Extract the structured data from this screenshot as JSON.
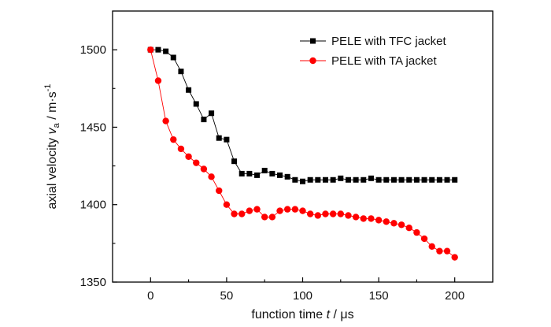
{
  "chart_data": {
    "type": "line",
    "xlabel": {
      "prefix": "function time ",
      "var": "t",
      "suffix": " / μs"
    },
    "ylabel": {
      "prefix": "axial velocity ",
      "var": "v",
      "sub": "a",
      "suffix": " / m·s",
      "sup": "-1"
    },
    "xlim": [
      -25,
      225
    ],
    "ylim": [
      1350,
      1525
    ],
    "x_ticks": [
      "0",
      "50",
      "100",
      "150",
      "200"
    ],
    "y_ticks": [
      "1350",
      "1400",
      "1450",
      "1500"
    ],
    "grid": false,
    "legend_position": "top-right",
    "series": [
      {
        "name": "PELE with TFC jacket",
        "color": "#000000",
        "marker": "square",
        "x": [
          0,
          5,
          10,
          15,
          20,
          25,
          30,
          35,
          40,
          45,
          50,
          55,
          60,
          65,
          70,
          75,
          80,
          85,
          90,
          95,
          100,
          105,
          110,
          115,
          120,
          125,
          130,
          135,
          140,
          145,
          150,
          155,
          160,
          165,
          170,
          175,
          180,
          185,
          190,
          195,
          200
        ],
        "y": [
          1500,
          1500,
          1499,
          1495,
          1486,
          1474,
          1465,
          1455,
          1459,
          1443,
          1442,
          1428,
          1420,
          1420,
          1419,
          1422,
          1420,
          1419,
          1418,
          1416,
          1415,
          1416,
          1416,
          1416,
          1416,
          1417,
          1416,
          1416,
          1416,
          1417,
          1416,
          1416,
          1416,
          1416,
          1416,
          1416,
          1416,
          1416,
          1416,
          1416,
          1416
        ]
      },
      {
        "name": "PELE with TA jacket",
        "color": "#ff0000",
        "marker": "circle",
        "x": [
          0,
          5,
          10,
          15,
          20,
          25,
          30,
          35,
          40,
          45,
          50,
          55,
          60,
          65,
          70,
          75,
          80,
          85,
          90,
          95,
          100,
          105,
          110,
          115,
          120,
          125,
          130,
          135,
          140,
          145,
          150,
          155,
          160,
          165,
          170,
          175,
          180,
          185,
          190,
          195,
          200
        ],
        "y": [
          1500,
          1480,
          1454,
          1442,
          1436,
          1431,
          1427,
          1423,
          1418,
          1409,
          1400,
          1394,
          1394,
          1396,
          1397,
          1392,
          1392,
          1396,
          1397,
          1397,
          1396,
          1394,
          1393,
          1394,
          1394,
          1394,
          1393,
          1392,
          1391,
          1391,
          1390,
          1389,
          1388,
          1387,
          1385,
          1382,
          1378,
          1373,
          1370,
          1370,
          1366
        ]
      }
    ]
  }
}
